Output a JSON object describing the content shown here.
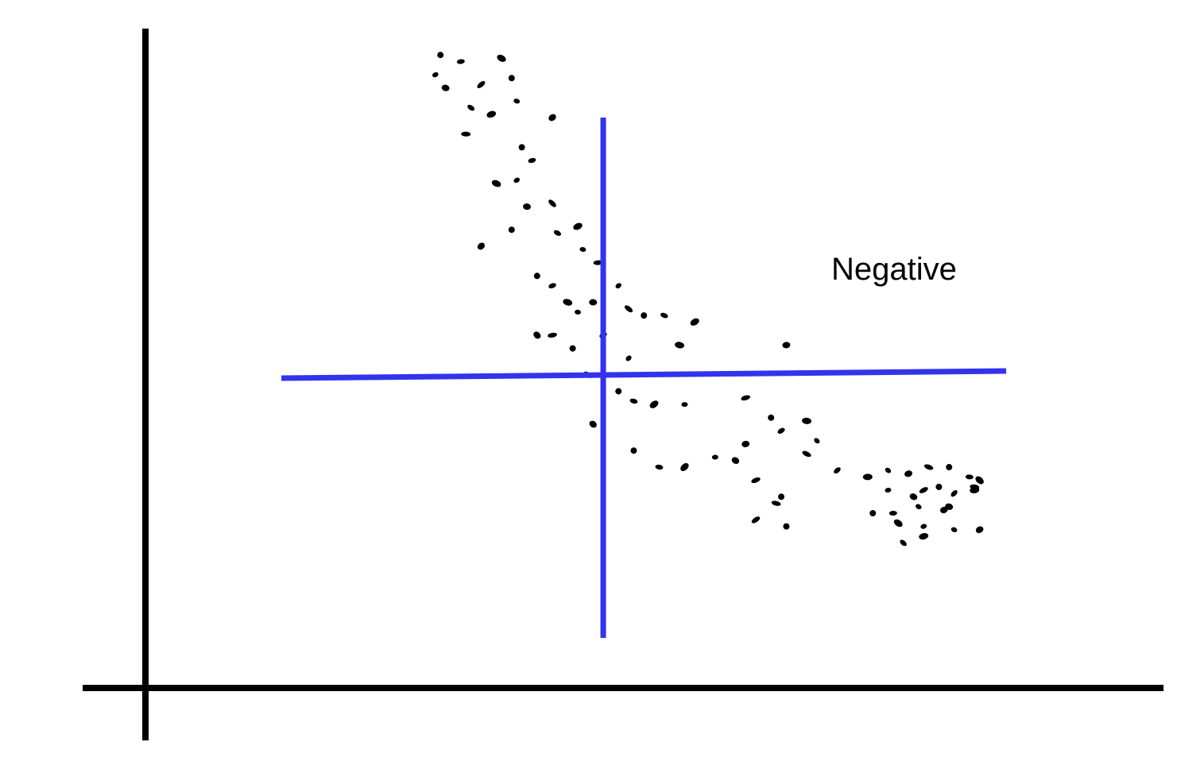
{
  "chart_data": {
    "type": "scatter",
    "title": "",
    "xlabel": "",
    "ylabel": "",
    "xlim": [
      0,
      100
    ],
    "ylim": [
      0,
      100
    ],
    "grid": false,
    "legend": "none",
    "annotation": "Negative",
    "colors": {
      "axes": "#000000",
      "points": "#000000",
      "mean_lines": "#3333ee"
    },
    "mean_lines": {
      "x": 45,
      "y": 45
    },
    "series": [
      {
        "points": [
          [
            29.0,
            96.0
          ],
          [
            31.0,
            95.0
          ],
          [
            35.0,
            95.5
          ],
          [
            28.5,
            93.0
          ],
          [
            29.5,
            91.0
          ],
          [
            33.0,
            91.5
          ],
          [
            36.0,
            92.5
          ],
          [
            32.0,
            88.0
          ],
          [
            34.0,
            87.0
          ],
          [
            36.5,
            89.0
          ],
          [
            40.0,
            86.5
          ],
          [
            31.5,
            84.0
          ],
          [
            37.0,
            82.0
          ],
          [
            38.0,
            80.0
          ],
          [
            34.5,
            76.5
          ],
          [
            36.5,
            77.0
          ],
          [
            37.5,
            73.0
          ],
          [
            40.0,
            73.5
          ],
          [
            36.0,
            69.5
          ],
          [
            40.5,
            69.0
          ],
          [
            42.5,
            70.0
          ],
          [
            43.0,
            66.5
          ],
          [
            33.0,
            67.0
          ],
          [
            44.5,
            64.5
          ],
          [
            38.5,
            62.5
          ],
          [
            40.0,
            61.0
          ],
          [
            41.5,
            58.5
          ],
          [
            46.5,
            61.0
          ],
          [
            44.0,
            58.5
          ],
          [
            47.5,
            57.5
          ],
          [
            49.0,
            56.5
          ],
          [
            51.0,
            56.5
          ],
          [
            54.0,
            55.5
          ],
          [
            42.5,
            57.0
          ],
          [
            38.5,
            53.5
          ],
          [
            40.0,
            53.5
          ],
          [
            42.0,
            51.5
          ],
          [
            45.0,
            53.5
          ],
          [
            52.5,
            52.0
          ],
          [
            47.5,
            50.0
          ],
          [
            63.0,
            52.0
          ],
          [
            43.5,
            47.5
          ],
          [
            46.5,
            45.0
          ],
          [
            48.0,
            43.5
          ],
          [
            50.0,
            43.0
          ],
          [
            53.0,
            43.0
          ],
          [
            44.0,
            40.0
          ],
          [
            59.0,
            44.0
          ],
          [
            61.5,
            41.0
          ],
          [
            62.5,
            39.0
          ],
          [
            65.0,
            40.5
          ],
          [
            66.0,
            37.5
          ],
          [
            59.0,
            37.0
          ],
          [
            65.0,
            35.5
          ],
          [
            48.0,
            36.0
          ],
          [
            50.5,
            33.5
          ],
          [
            53.0,
            33.5
          ],
          [
            56.0,
            35.0
          ],
          [
            58.0,
            34.5
          ],
          [
            60.0,
            31.5
          ],
          [
            62.5,
            29.0
          ],
          [
            68.0,
            33.0
          ],
          [
            71.0,
            32.0
          ],
          [
            73.0,
            33.0
          ],
          [
            75.0,
            32.5
          ],
          [
            77.0,
            33.5
          ],
          [
            79.0,
            33.5
          ],
          [
            81.0,
            32.0
          ],
          [
            82.0,
            31.5
          ],
          [
            73.0,
            30.0
          ],
          [
            75.5,
            29.0
          ],
          [
            76.5,
            30.0
          ],
          [
            78.0,
            30.5
          ],
          [
            79.5,
            29.5
          ],
          [
            81.5,
            30.0
          ],
          [
            76.0,
            27.5
          ],
          [
            78.5,
            27.0
          ],
          [
            62.0,
            28.0
          ],
          [
            71.5,
            26.5
          ],
          [
            73.5,
            26.5
          ],
          [
            74.0,
            25.0
          ],
          [
            76.5,
            24.5
          ],
          [
            79.0,
            27.5
          ],
          [
            60.0,
            25.5
          ],
          [
            63.0,
            24.5
          ],
          [
            74.5,
            22.0
          ],
          [
            76.5,
            23.0
          ],
          [
            79.5,
            24.0
          ],
          [
            82.0,
            24.0
          ],
          [
            81.5,
            30.5
          ]
        ]
      }
    ]
  }
}
